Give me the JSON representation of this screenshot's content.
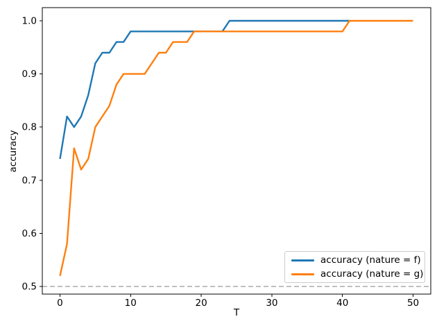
{
  "chart_data": {
    "type": "line",
    "xlabel": "T",
    "ylabel": "accuracy",
    "xlim": [
      -2.5,
      52.5
    ],
    "ylim": [
      0.4856,
      1.0248
    ],
    "x_ticks": [
      0,
      10,
      20,
      30,
      40,
      50
    ],
    "y_ticks": [
      0.5,
      0.6,
      0.7,
      0.8,
      0.9,
      1.0
    ],
    "grid": false,
    "legend_position": "lower right",
    "reference_line": {
      "y": 0.5,
      "style": "dashed",
      "color": "#aaaaaa"
    },
    "series": [
      {
        "name": "accuracy (nature = f)",
        "nature": "f",
        "color": "#1f77b4",
        "points": [
          [
            0,
            0.74
          ],
          [
            1,
            0.82
          ],
          [
            2,
            0.8
          ],
          [
            3,
            0.82
          ],
          [
            4,
            0.86
          ],
          [
            5,
            0.92
          ],
          [
            6,
            0.94
          ],
          [
            7,
            0.94
          ],
          [
            8,
            0.96
          ],
          [
            9,
            0.96
          ],
          [
            10,
            0.98
          ],
          [
            11,
            0.98
          ],
          [
            12,
            0.98
          ],
          [
            13,
            0.98
          ],
          [
            14,
            0.98
          ],
          [
            15,
            0.98
          ],
          [
            16,
            0.98
          ],
          [
            17,
            0.98
          ],
          [
            18,
            0.98
          ],
          [
            19,
            0.98
          ],
          [
            20,
            0.98
          ],
          [
            21,
            0.98
          ],
          [
            22,
            0.98
          ],
          [
            23,
            0.98
          ],
          [
            24,
            1.0
          ],
          [
            25,
            1.0
          ],
          [
            26,
            1.0
          ],
          [
            27,
            1.0
          ],
          [
            28,
            1.0
          ],
          [
            29,
            1.0
          ],
          [
            30,
            1.0
          ],
          [
            31,
            1.0
          ],
          [
            32,
            1.0
          ],
          [
            33,
            1.0
          ],
          [
            34,
            1.0
          ],
          [
            35,
            1.0
          ],
          [
            36,
            1.0
          ],
          [
            37,
            1.0
          ],
          [
            38,
            1.0
          ],
          [
            39,
            1.0
          ],
          [
            40,
            1.0
          ],
          [
            41,
            1.0
          ]
        ]
      },
      {
        "name": "accuracy (nature = g)",
        "nature": "g",
        "color": "#ff7f0e",
        "points": [
          [
            0,
            0.52
          ],
          [
            1,
            0.58
          ],
          [
            2,
            0.76
          ],
          [
            3,
            0.72
          ],
          [
            4,
            0.74
          ],
          [
            5,
            0.8
          ],
          [
            6,
            0.82
          ],
          [
            7,
            0.84
          ],
          [
            8,
            0.88
          ],
          [
            9,
            0.9
          ],
          [
            10,
            0.9
          ],
          [
            11,
            0.9
          ],
          [
            12,
            0.9
          ],
          [
            13,
            0.92
          ],
          [
            14,
            0.94
          ],
          [
            15,
            0.94
          ],
          [
            16,
            0.96
          ],
          [
            17,
            0.96
          ],
          [
            18,
            0.96
          ],
          [
            19,
            0.98
          ],
          [
            20,
            0.98
          ],
          [
            21,
            0.98
          ],
          [
            22,
            0.98
          ],
          [
            23,
            0.98
          ],
          [
            24,
            0.98
          ],
          [
            25,
            0.98
          ],
          [
            26,
            0.98
          ],
          [
            27,
            0.98
          ],
          [
            28,
            0.98
          ],
          [
            29,
            0.98
          ],
          [
            30,
            0.98
          ],
          [
            31,
            0.98
          ],
          [
            32,
            0.98
          ],
          [
            33,
            0.98
          ],
          [
            34,
            0.98
          ],
          [
            35,
            0.98
          ],
          [
            36,
            0.98
          ],
          [
            37,
            0.98
          ],
          [
            38,
            0.98
          ],
          [
            39,
            0.98
          ],
          [
            40,
            0.98
          ],
          [
            41,
            1.0
          ],
          [
            42,
            1.0
          ],
          [
            43,
            1.0
          ],
          [
            44,
            1.0
          ],
          [
            45,
            1.0
          ],
          [
            46,
            1.0
          ],
          [
            47,
            1.0
          ],
          [
            48,
            1.0
          ],
          [
            49,
            1.0
          ],
          [
            50,
            1.0
          ]
        ]
      }
    ]
  }
}
